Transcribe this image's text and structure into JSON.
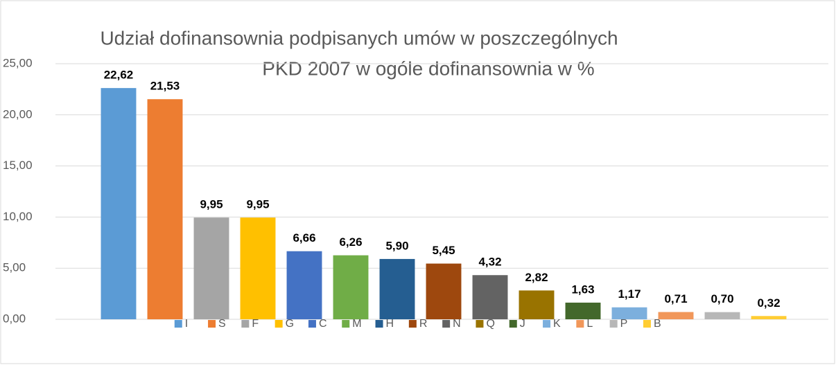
{
  "chart_data": {
    "type": "bar",
    "title": [
      "Udział dofinansownia podpisanych umów w poszczególnych",
      "PKD 2007 w ogóle dofinansownia w %"
    ],
    "categories": [
      "I",
      "S",
      "F",
      "G",
      "C",
      "M",
      "H",
      "R",
      "N",
      "Q",
      "J",
      "K",
      "L",
      "P",
      "B"
    ],
    "values": [
      22.62,
      21.53,
      9.95,
      9.95,
      6.66,
      6.26,
      5.9,
      5.45,
      4.32,
      2.82,
      1.63,
      1.17,
      0.71,
      0.7,
      0.32
    ],
    "value_labels": [
      "22,62",
      "21,53",
      "9,95",
      "9,95",
      "6,66",
      "6,26",
      "5,90",
      "5,45",
      "4,32",
      "2,82",
      "1,63",
      "1,17",
      "0,71",
      "0,70",
      "0,32"
    ],
    "colors": [
      "#5b9bd5",
      "#ed7d31",
      "#a5a5a5",
      "#ffc000",
      "#4472c4",
      "#70ad47",
      "#255e91",
      "#9e480e",
      "#636363",
      "#997300",
      "#43682b",
      "#7cafdd",
      "#f1975a",
      "#b7b7b7",
      "#ffcd33"
    ],
    "ylim": [
      0,
      25
    ],
    "yticks": [
      {
        "value": 0,
        "label": "0,00"
      },
      {
        "value": 5,
        "label": "5,00"
      },
      {
        "value": 10,
        "label": "10,00"
      },
      {
        "value": 15,
        "label": "15,00"
      },
      {
        "value": 20,
        "label": "20,00"
      },
      {
        "value": 25,
        "label": "25,00"
      }
    ],
    "grid": true,
    "legend": "bottom"
  }
}
